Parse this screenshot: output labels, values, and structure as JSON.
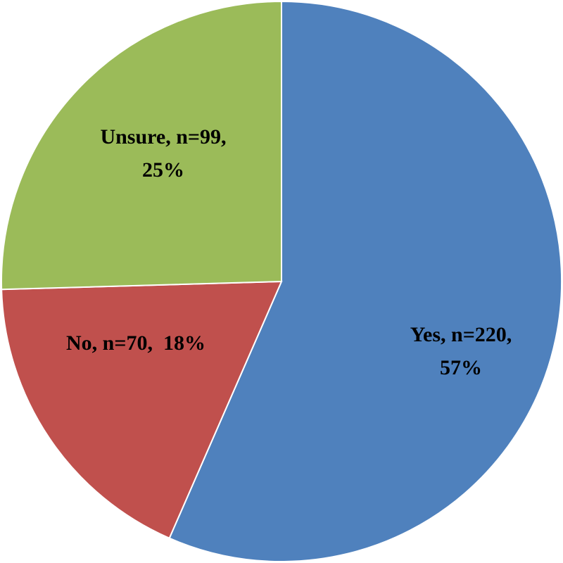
{
  "chart_data": {
    "type": "pie",
    "categories": [
      "Yes",
      "No",
      "Unsure"
    ],
    "values": [
      220,
      70,
      99
    ],
    "value_labels": [
      [
        "Yes, n=220,",
        "57%"
      ],
      [
        "No, n=70,  18%"
      ],
      [
        "Unsure, n=99,",
        "25%"
      ]
    ],
    "colors": [
      "#4f81bd",
      "#c0504d",
      "#9bbb59"
    ]
  }
}
